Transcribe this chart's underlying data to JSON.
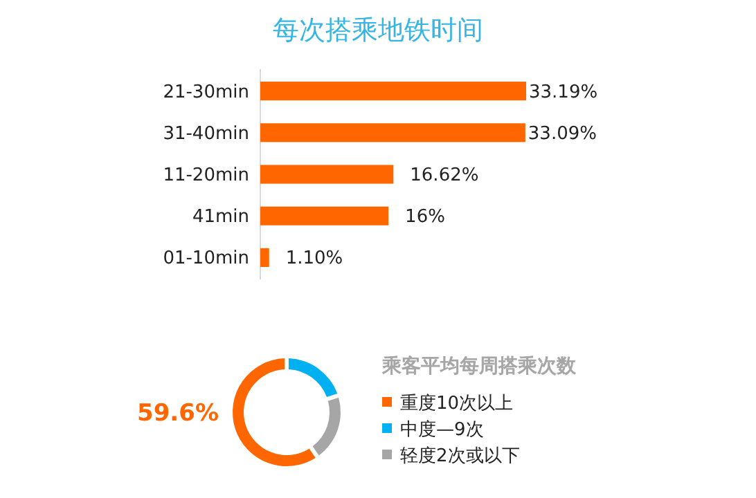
{
  "chart_data": [
    {
      "type": "bar",
      "orientation": "horizontal",
      "title": "每次搭乘地铁时间",
      "categories": [
        "21-30min",
        "31-40min",
        "11-20min",
        "41min",
        "01-10min"
      ],
      "values": [
        33.19,
        33.09,
        16.62,
        16,
        1.1
      ],
      "value_labels": [
        "33.19%",
        "33.09%",
        "16.62%",
        "16%",
        "1.10%"
      ],
      "color": "#ff6600"
    },
    {
      "type": "donut",
      "legend_title": "乘客平均每周搭乘次数",
      "categories": [
        "重度10次以上",
        "中度—9次",
        "轻度2次或以下"
      ],
      "values": [
        59.6,
        20,
        20.4
      ],
      "colors": [
        "#ff6600",
        "#00b0f0",
        "#a6a6a6"
      ],
      "value_labels": [
        "59.6%",
        null,
        null
      ],
      "legend": "right"
    }
  ]
}
